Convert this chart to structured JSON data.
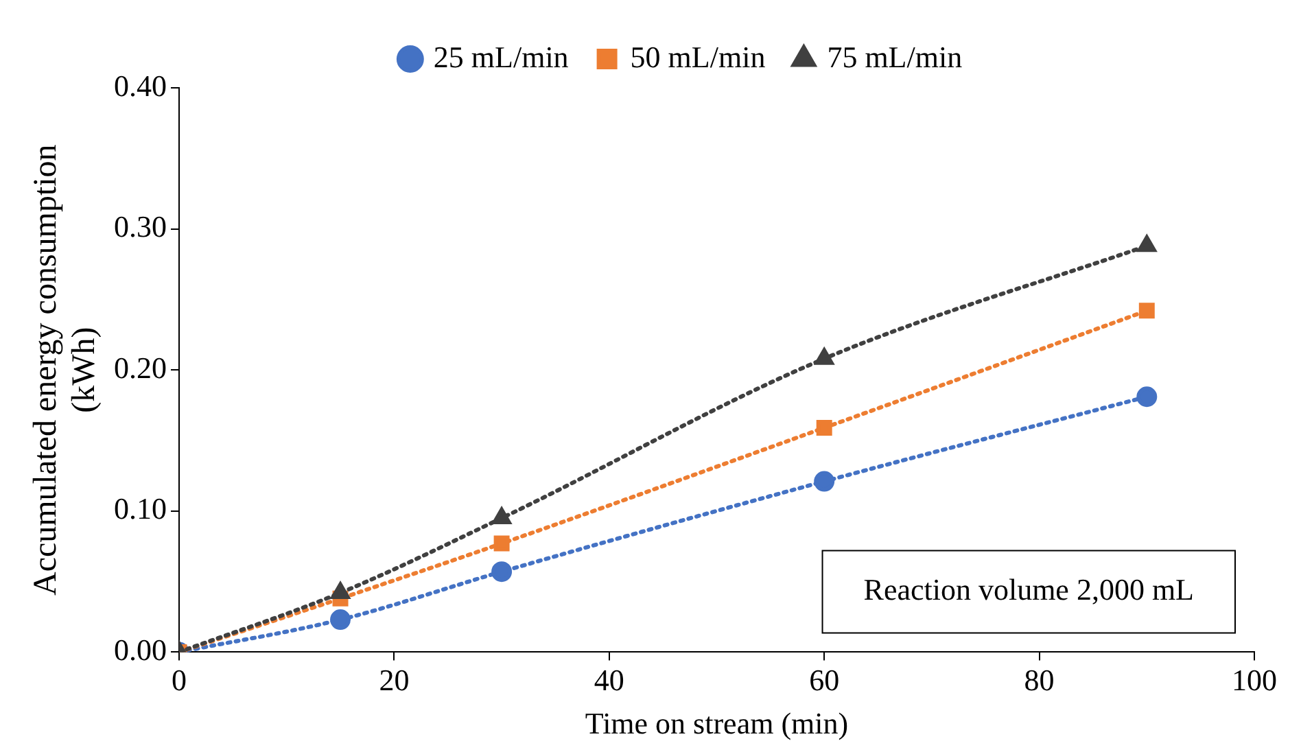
{
  "chart_data": {
    "type": "line",
    "xlabel": "Time on stream (min)",
    "ylabel": "Accumulated energy consumption (kWh)",
    "annotations": [
      "Reaction volume 2,000 mL"
    ],
    "x": [
      0,
      15,
      30,
      60,
      90
    ],
    "series": [
      {
        "name": "25 mL/min",
        "color": "#4472c4",
        "marker": "circle",
        "values": [
          0,
          0.023,
          0.057,
          0.121,
          0.181
        ]
      },
      {
        "name": "50 mL/min",
        "color": "#ed7d31",
        "marker": "square",
        "values": [
          0,
          0.038,
          0.077,
          0.159,
          0.242
        ]
      },
      {
        "name": "75 mL/min",
        "color": "#404040",
        "marker": "triangle",
        "values": [
          0,
          0.042,
          0.095,
          0.208,
          0.288
        ]
      }
    ],
    "xlim": [
      0,
      100
    ],
    "xticks": [
      0,
      20,
      40,
      60,
      80,
      100
    ],
    "ylim": [
      0,
      0.4
    ],
    "yticks": [
      {
        "value": 0,
        "label": "0.00"
      },
      {
        "value": 0.1,
        "label": "0.10"
      },
      {
        "value": 0.2,
        "label": "0.20"
      },
      {
        "value": 0.3,
        "label": "0.30"
      },
      {
        "value": 0.4,
        "label": "0.40"
      }
    ],
    "grid": false,
    "legend": "top",
    "line_style": "dotted"
  }
}
